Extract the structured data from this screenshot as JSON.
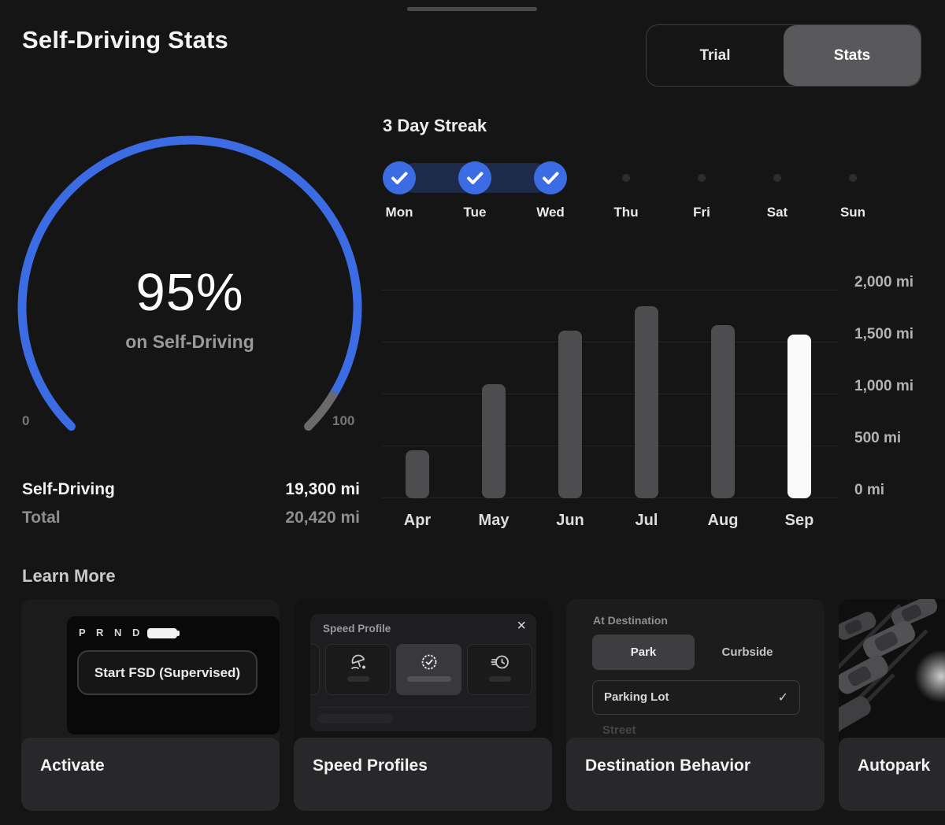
{
  "header": {
    "title": "Self-Driving Stats",
    "tabs": [
      {
        "label": "Trial",
        "active": false
      },
      {
        "label": "Stats",
        "active": true
      }
    ]
  },
  "streak": {
    "title": "3 Day Streak",
    "accent_color": "#3c6ce3",
    "band_color": "#1d2a49",
    "days": [
      {
        "label": "Mon",
        "completed": true
      },
      {
        "label": "Tue",
        "completed": true
      },
      {
        "label": "Wed",
        "completed": true
      },
      {
        "label": "Thu",
        "completed": false
      },
      {
        "label": "Fri",
        "completed": false
      },
      {
        "label": "Sat",
        "completed": false
      },
      {
        "label": "Sun",
        "completed": false
      }
    ]
  },
  "gauge": {
    "value": 95,
    "value_label": "95%",
    "sublabel": "on Self-Driving",
    "min_label": "0",
    "max_label": "100",
    "accent_color": "#3c6ce3",
    "remainder_color": "#6a6a6c"
  },
  "totals": {
    "rows": [
      {
        "label": "Self-Driving",
        "value": "19,300 mi"
      },
      {
        "label": "Total",
        "value": "20,420 mi"
      }
    ]
  },
  "chart_data": {
    "type": "bar",
    "categories": [
      "Apr",
      "May",
      "Jun",
      "Jul",
      "Aug",
      "Sep"
    ],
    "values": [
      460,
      1100,
      1610,
      1850,
      1670,
      1575
    ],
    "unit": "mi",
    "ylim": [
      0,
      2000
    ],
    "ylabel_ticks": [
      "2,000 mi",
      "1,500 mi",
      "1,000 mi",
      "500 mi",
      "0 mi"
    ],
    "grid": true,
    "legend": false,
    "highlight_category": "Sep",
    "bar_color": "#4d4d4f",
    "highlight_color": "#fafafa"
  },
  "learn_more": {
    "title": "Learn More",
    "cards": [
      {
        "label": "Activate",
        "preview": {
          "gear_letters": "P R N D",
          "button_label": "Start FSD (Supervised)"
        }
      },
      {
        "label": "Speed Profiles",
        "preview": {
          "dialog_title": "Speed Profile",
          "close_icon": "×"
        }
      },
      {
        "label": "Destination Behavior",
        "preview": {
          "section_label": "At Destination",
          "segments": [
            "Park",
            "Curbside"
          ],
          "selected_segment": "Park",
          "option": "Parking Lot",
          "option_checked": true,
          "check_icon": "✓",
          "next_option": "Street"
        }
      },
      {
        "label": "Autopark"
      }
    ]
  }
}
